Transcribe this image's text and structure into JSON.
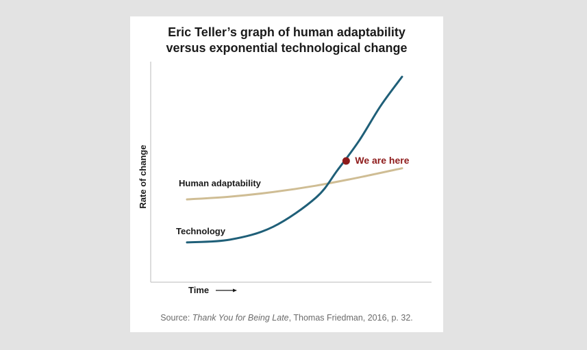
{
  "chart_data": {
    "type": "line",
    "title_lines": [
      "Eric Teller’s graph of human adaptability",
      "versus exponential technological change"
    ],
    "xlabel": "Time",
    "ylabel": "Rate of change",
    "grid": false,
    "series": [
      {
        "name": "Human adaptability",
        "color": "#cfbd94",
        "x": [
          0,
          20,
          40,
          60,
          80,
          100
        ],
        "y": [
          37,
          38.5,
          41,
          44.5,
          49,
          54
        ]
      },
      {
        "name": "Technology",
        "color": "#1f5f78",
        "x": [
          0,
          20,
          40,
          60,
          70,
          80,
          90,
          100
        ],
        "y": [
          13.5,
          15,
          22,
          38,
          53,
          69,
          88,
          104
        ]
      }
    ],
    "xlim": [
      0,
      100
    ],
    "ylim": [
      0,
      110
    ],
    "annotation": {
      "label": "We are here",
      "color": "#8e1b1b",
      "x": 74,
      "y": 58
    }
  },
  "source": {
    "prefix": "Source: ",
    "book": "Thank You for Being Late",
    "suffix": ", Thomas Friedman, 2016, p. 32."
  }
}
